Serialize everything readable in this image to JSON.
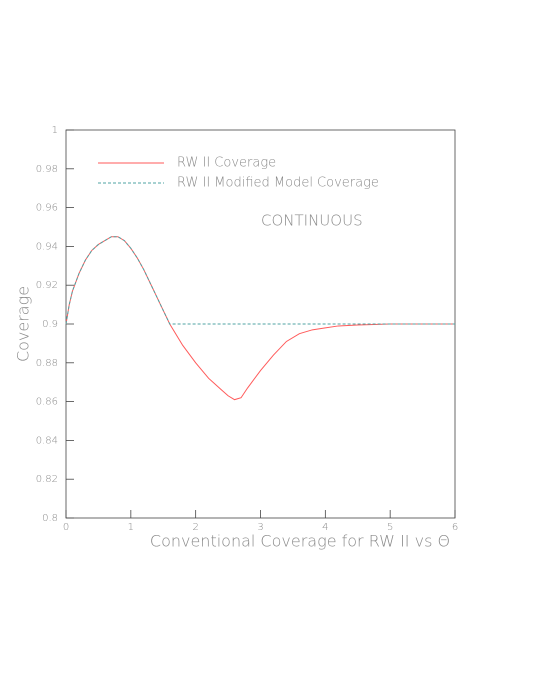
{
  "chart_data": {
    "type": "line",
    "xlabel": "Conventional Coverage for RW II vs Θ",
    "ylabel": "Coverage",
    "annotation": "CONTINUOUS",
    "x": [
      0,
      0.05,
      0.1,
      0.2,
      0.3,
      0.4,
      0.5,
      0.6,
      0.7,
      0.8,
      0.9,
      1.0,
      1.1,
      1.2,
      1.3,
      1.4,
      1.5,
      1.6,
      1.8,
      2.0,
      2.2,
      2.4,
      2.5,
      2.6,
      2.7,
      2.8,
      3.0,
      3.2,
      3.4,
      3.6,
      3.8,
      4.0,
      4.2,
      4.5,
      5.0,
      5.5,
      6.0
    ],
    "series": [
      {
        "name": "RW II Coverage",
        "color": "#ff5a5a",
        "dashed": false,
        "values": [
          0.9,
          0.91,
          0.917,
          0.926,
          0.933,
          0.938,
          0.941,
          0.943,
          0.945,
          0.945,
          0.943,
          0.939,
          0.934,
          0.928,
          0.921,
          0.914,
          0.907,
          0.9,
          0.889,
          0.88,
          0.872,
          0.866,
          0.863,
          0.861,
          0.862,
          0.867,
          0.876,
          0.884,
          0.891,
          0.895,
          0.897,
          0.898,
          0.899,
          0.8995,
          0.9,
          0.9,
          0.9
        ]
      },
      {
        "name": "RW II Modified Model Coverage",
        "color": "#4fa3a3",
        "dashed": true,
        "values": [
          0.9,
          0.91,
          0.917,
          0.926,
          0.933,
          0.938,
          0.941,
          0.943,
          0.945,
          0.945,
          0.943,
          0.939,
          0.934,
          0.928,
          0.921,
          0.914,
          0.907,
          0.9,
          0.9,
          0.9,
          0.9,
          0.9,
          0.9,
          0.9,
          0.9,
          0.9,
          0.9,
          0.9,
          0.9,
          0.9,
          0.9,
          0.9,
          0.9,
          0.9,
          0.9,
          0.9,
          0.9
        ]
      }
    ],
    "xlim": [
      0,
      6
    ],
    "xticks": [
      0,
      1,
      2,
      3,
      4,
      5,
      6
    ],
    "ylim": [
      0.8,
      1
    ],
    "yticks": [
      0.8,
      0.82,
      0.84,
      0.86,
      0.88,
      0.9,
      0.92,
      0.94,
      0.96,
      0.98,
      1
    ]
  }
}
